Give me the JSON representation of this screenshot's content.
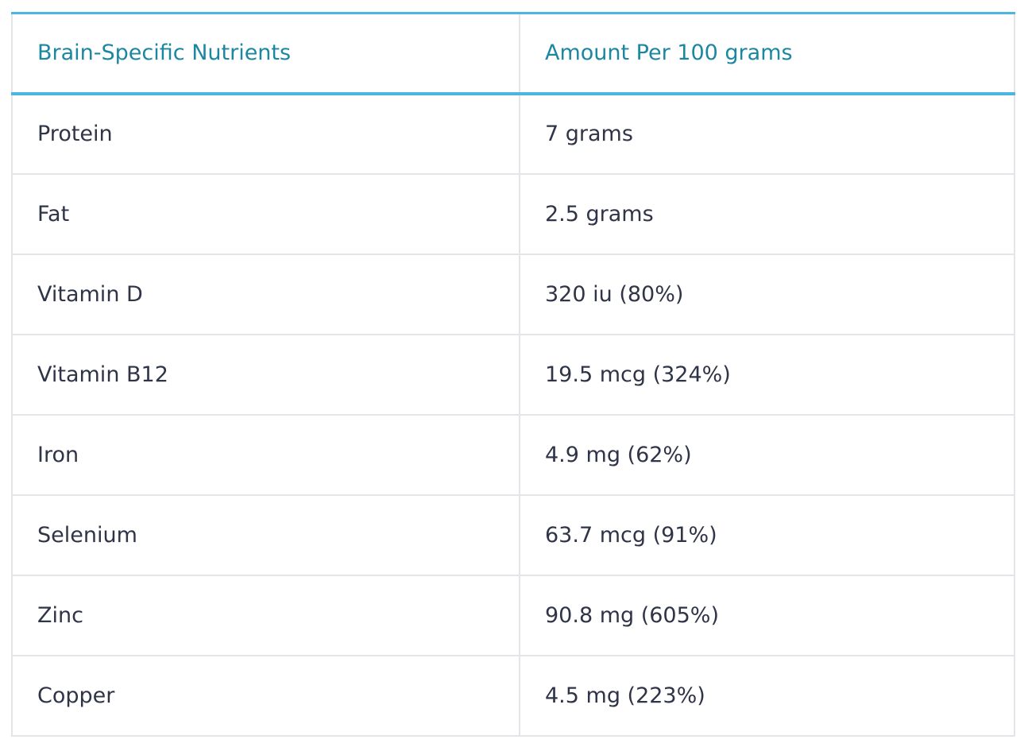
{
  "table": {
    "headers": [
      "Brain-Specific Nutrients",
      "Amount Per 100 grams"
    ],
    "rows": [
      [
        "Protein",
        "7 grams"
      ],
      [
        "Fat",
        "2.5 grams"
      ],
      [
        "Vitamin D",
        "320 iu (80%)"
      ],
      [
        "Vitamin B12",
        "19.5 mcg (324%)"
      ],
      [
        "Iron",
        "4.9 mg (62%)"
      ],
      [
        "Selenium",
        "63.7 mcg (91%)"
      ],
      [
        "Zinc",
        "90.8 mg (605%)"
      ],
      [
        "Copper",
        "4.5 mg (223%)"
      ]
    ]
  },
  "colors": {
    "header_text": "#1b87a0",
    "accent_border": "#4db6e0",
    "body_text": "#2f3447",
    "row_border": "#e3e5e8"
  }
}
